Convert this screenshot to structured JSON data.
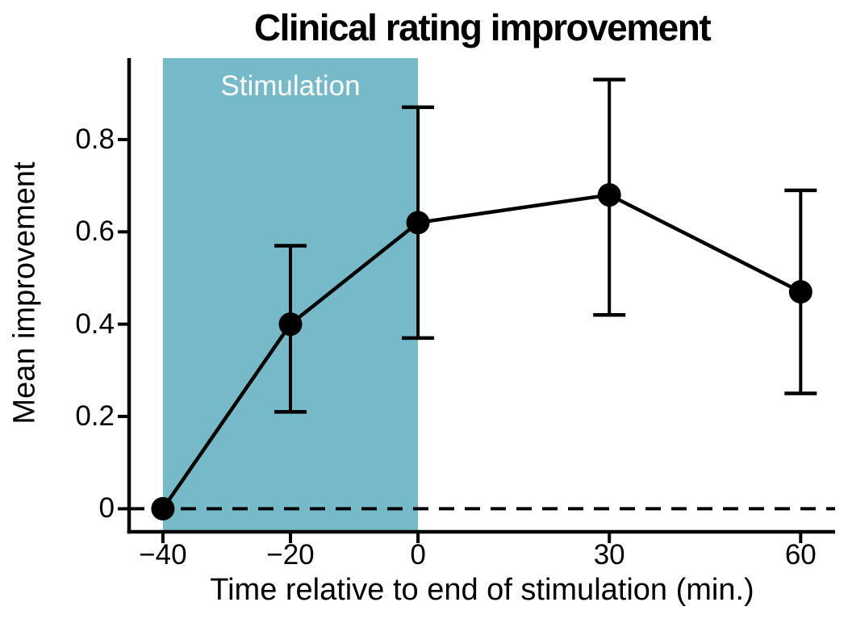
{
  "chart_data": {
    "type": "line",
    "title": "Clinical rating improvement",
    "xlabel": "Time relative to end of stimulation (min.)",
    "ylabel": "Mean improvement",
    "x": [
      -40,
      -20,
      0,
      30,
      60
    ],
    "series": [
      {
        "name": "Mean improvement",
        "values": [
          0.0,
          0.4,
          0.62,
          0.68,
          0.47
        ],
        "err_low": [
          0.0,
          0.21,
          0.37,
          0.42,
          0.25
        ],
        "err_high": [
          0.0,
          0.57,
          0.87,
          0.93,
          0.69
        ]
      }
    ],
    "x_ticks": [
      -40,
      -20,
      0,
      30,
      60
    ],
    "x_tick_labels": [
      "−40",
      "−20",
      "0",
      "30",
      "60"
    ],
    "y_ticks": [
      0,
      0.2,
      0.4,
      0.6,
      0.8
    ],
    "y_tick_labels": [
      "0",
      "0.2",
      "0.4",
      "0.6",
      "0.8"
    ],
    "xlim": [
      -45.3,
      65.4
    ],
    "ylim": [
      -0.05,
      0.98
    ],
    "grid": false,
    "legend": false,
    "marker": "circle",
    "band": {
      "x_start": -40,
      "x_end": 0,
      "label": "Stimulation"
    },
    "reference_line": {
      "y": 0,
      "style": "dashed"
    },
    "colors": {
      "line": "#000000",
      "marker": "#000000",
      "band": "#76b9c8",
      "band_label_text": "#ffffff",
      "background": "#ffffff",
      "text": "#000000"
    }
  }
}
